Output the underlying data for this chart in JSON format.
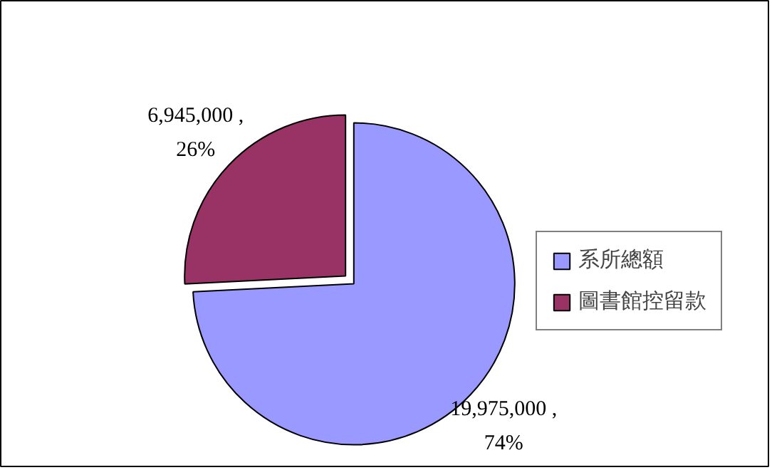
{
  "chart_data": {
    "type": "pie",
    "categories": [
      "系所總額",
      "圖書館控留款"
    ],
    "values": [
      19975000,
      6945000
    ],
    "colors": [
      "#9999ff",
      "#993366"
    ],
    "value_labels": [
      "19,975,000 ,\n74%",
      "6,945,000 ,\n26%"
    ],
    "legend": "right"
  }
}
